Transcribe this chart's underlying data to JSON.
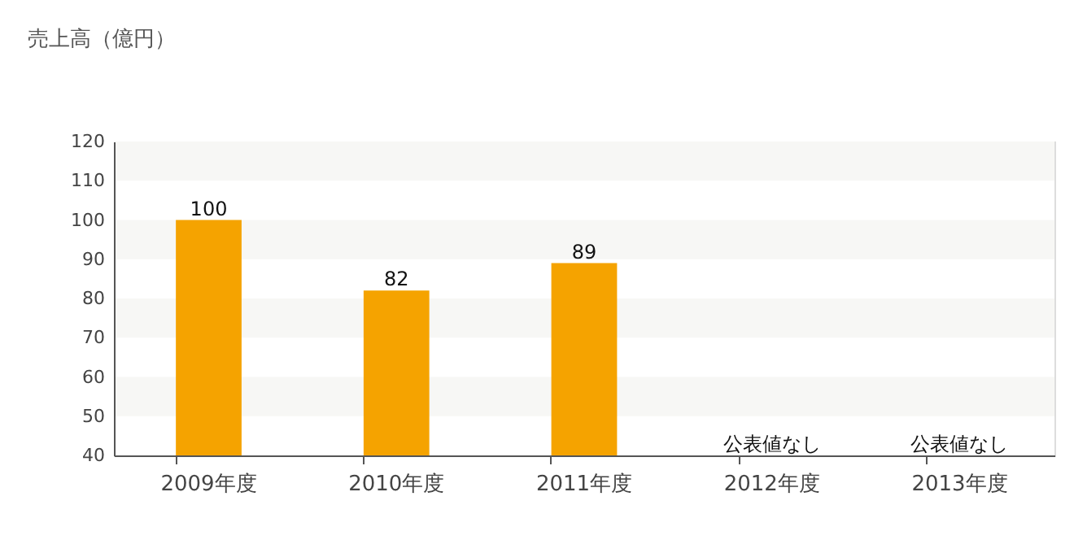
{
  "chart_data": {
    "type": "bar",
    "title": "売上高（億円）",
    "categories": [
      "2009年度",
      "2010年度",
      "2011年度",
      "2012年度",
      "2013年度"
    ],
    "values": [
      100,
      82,
      89,
      null,
      null
    ],
    "value_labels": [
      "100",
      "82",
      "89",
      "公表値なし",
      "公表値なし"
    ],
    "color": "#f5a300",
    "ylim": [
      40,
      120
    ],
    "yticks": [
      40,
      50,
      60,
      70,
      80,
      90,
      100,
      110,
      120
    ],
    "bands": [
      {
        "axis": "y",
        "from": 110,
        "to": 120,
        "color": "#f7f7f5"
      },
      {
        "axis": "y",
        "from": 90,
        "to": 100,
        "color": "#f7f7f5"
      },
      {
        "axis": "y",
        "from": 70,
        "to": 80,
        "color": "#f7f7f5"
      },
      {
        "axis": "y",
        "from": 50,
        "to": 60,
        "color": "#f7f7f5"
      }
    ],
    "grid": false
  }
}
